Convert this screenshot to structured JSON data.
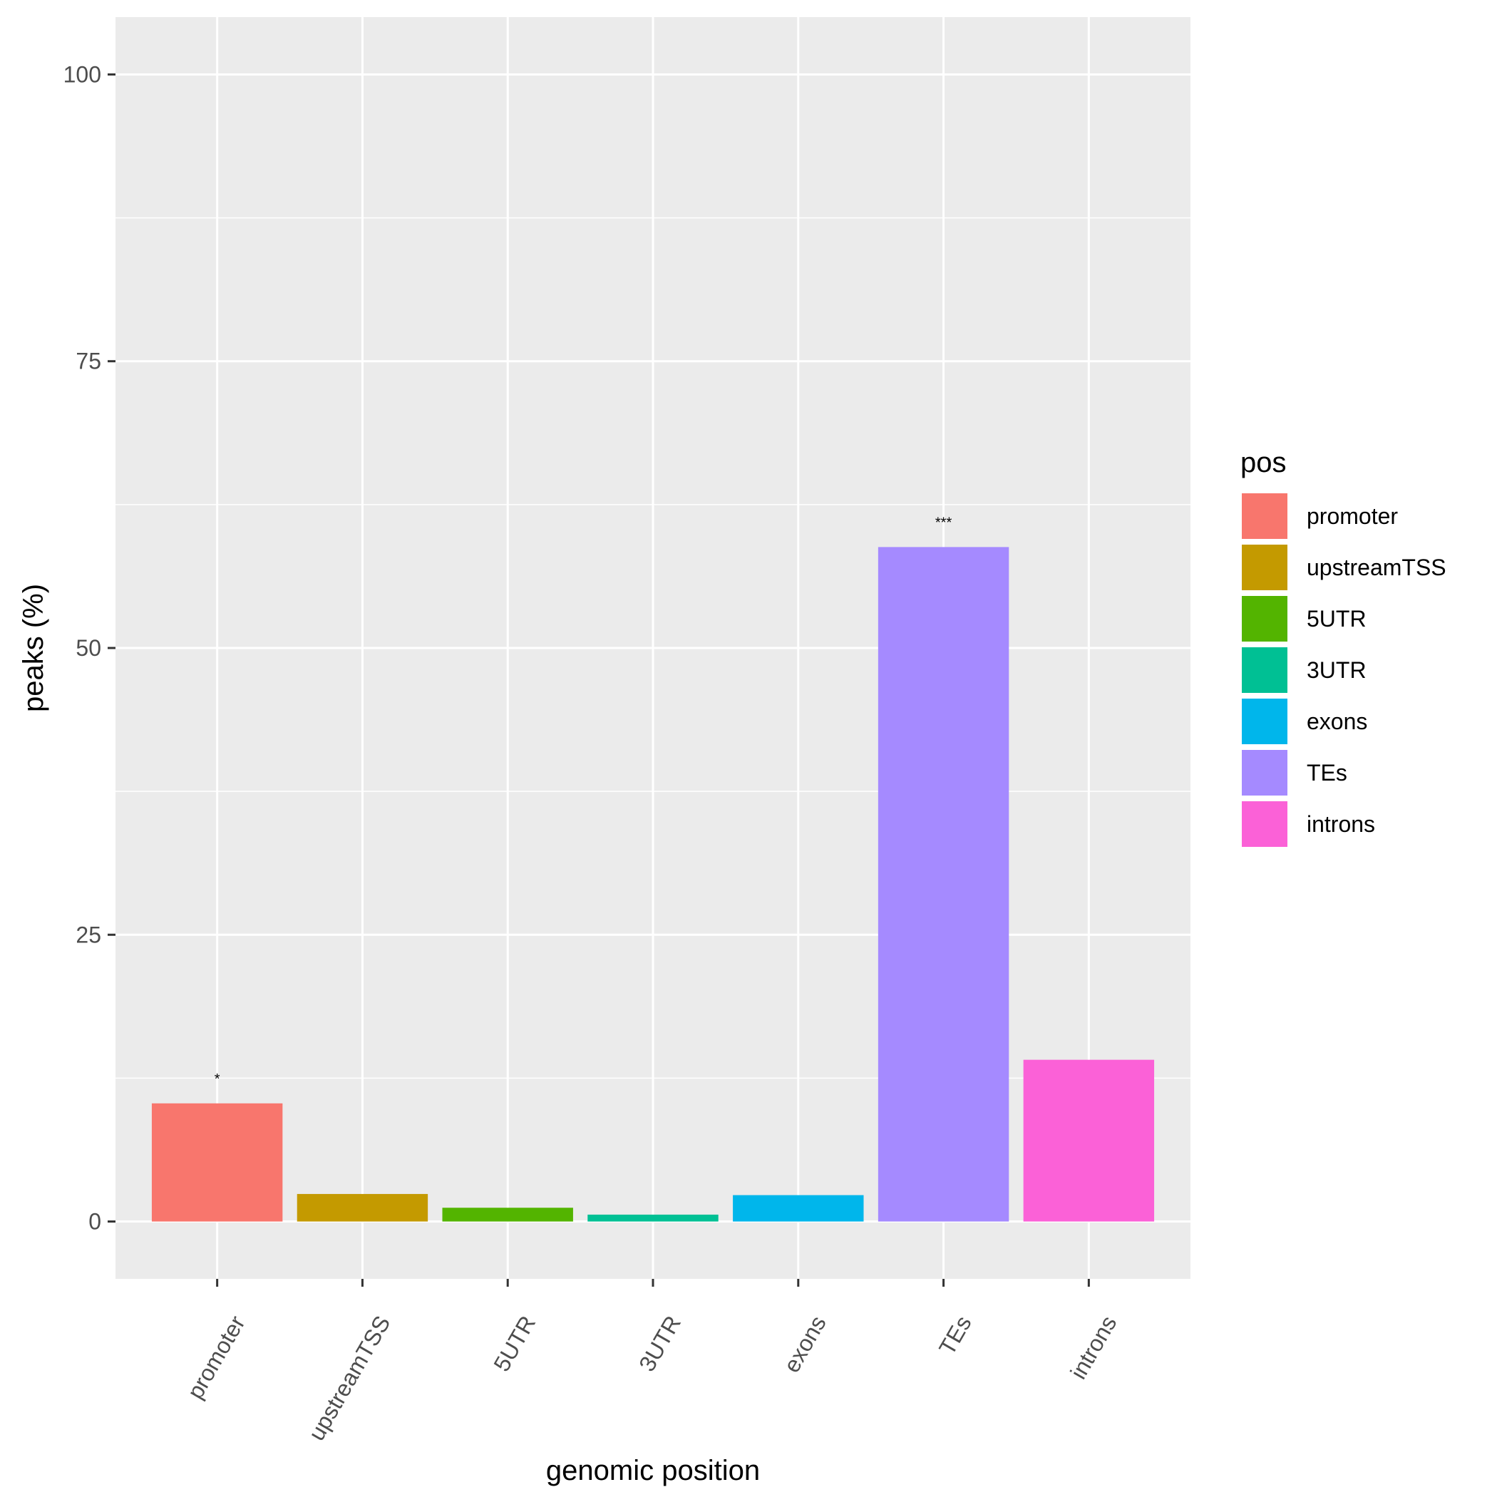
{
  "chart_data": {
    "type": "bar",
    "xlabel": "genomic position",
    "ylabel": "peaks (%)",
    "categories": [
      "promoter",
      "upstreamTSS",
      "5UTR",
      "3UTR",
      "exons",
      "TEs",
      "introns"
    ],
    "values": [
      10.3,
      2.4,
      1.2,
      0.6,
      2.3,
      58.8,
      14.1
    ],
    "annotations": [
      "*",
      "",
      "",
      "",
      "",
      "***",
      ""
    ],
    "colors": [
      "#F8766D",
      "#C49A00",
      "#53B400",
      "#00C094",
      "#00B6EB",
      "#A58AFF",
      "#FB61D7"
    ],
    "ylim": [
      -5,
      105
    ],
    "yticks": [
      0,
      25,
      50,
      75,
      100
    ],
    "grid": true,
    "legend": {
      "title": "pos",
      "position": "right",
      "items": [
        "promoter",
        "upstreamTSS",
        "5UTR",
        "3UTR",
        "exons",
        "TEs",
        "introns"
      ]
    }
  }
}
